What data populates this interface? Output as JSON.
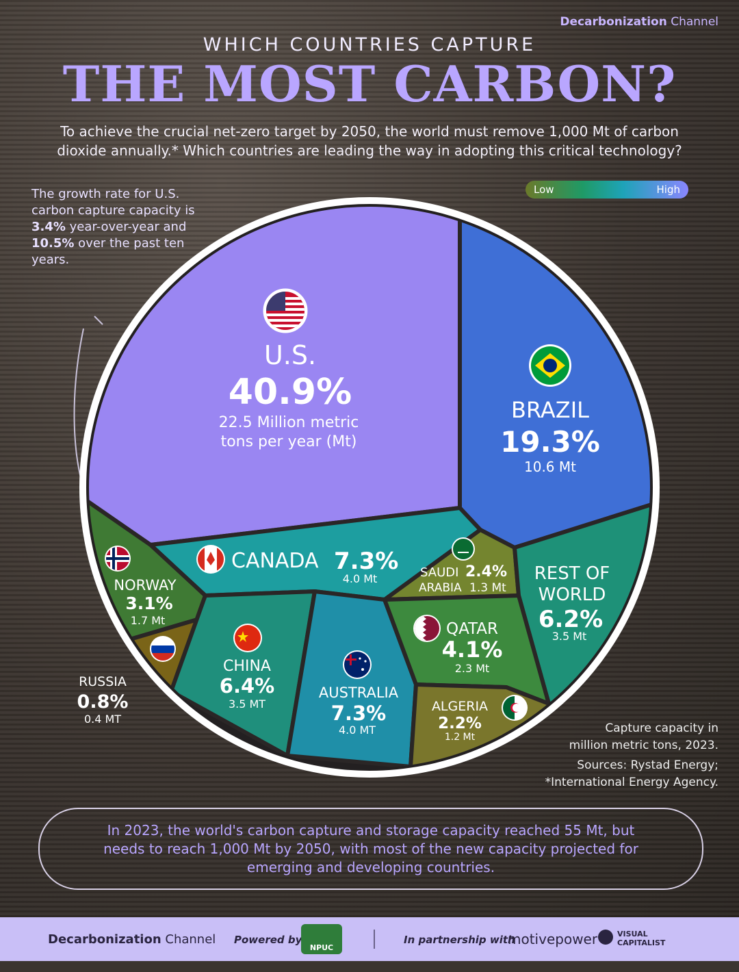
{
  "brand": {
    "bold": "Decarbonization",
    "light": "Channel"
  },
  "kicker": "WHICH COUNTRIES CAPTURE",
  "headline": "THE MOST CARBON?",
  "intro": "To achieve the crucial net-zero target by 2050, the world must remove 1,000 Mt of carbon dioxide annually.* Which countries are leading the way in adopting this critical technology?",
  "note": {
    "text_1": "The growth rate for U.S. carbon capture capacity is ",
    "rate_yoy": "3.4%",
    "text_2": " year-over-year and ",
    "rate_10y": "10.5%",
    "text_3": " over the past ten years."
  },
  "legend": {
    "low": "Low",
    "high": "High",
    "colors": [
      "#6b7a2a",
      "#1f9a66",
      "#1ea3b8",
      "#8a86ff"
    ]
  },
  "chart_data": {
    "type": "voronoi-treemap",
    "title": "THE MOST CARBON?",
    "unit": "Mt",
    "series": [
      {
        "name": "U.S.",
        "share_pct": 40.9,
        "value_text": "22.5 Million metric tons per year (Mt)",
        "value_mt": 22.5,
        "color": "#9a86f2",
        "flag": "us-flag-icon"
      },
      {
        "name": "BRAZIL",
        "share_pct": 19.3,
        "value_text": "10.6 Mt",
        "value_mt": 10.6,
        "color": "#3f6fd6",
        "flag": "brazil-flag-icon"
      },
      {
        "name": "CANADA",
        "share_pct": 7.3,
        "value_text": "4.0 Mt",
        "value_mt": 4.0,
        "color": "#1d9ea0",
        "flag": "canada-flag-icon"
      },
      {
        "name": "AUSTRALIA",
        "share_pct": 7.3,
        "value_text": "4.0 MT",
        "value_mt": 4.0,
        "color": "#1f8fa8",
        "flag": "australia-flag-icon"
      },
      {
        "name": "CHINA",
        "share_pct": 6.4,
        "value_text": "3.5 MT",
        "value_mt": 3.5,
        "color": "#1f8f7c",
        "flag": "china-flag-icon"
      },
      {
        "name": "REST OF WORLD",
        "share_pct": 6.2,
        "value_text": "3.5 Mt",
        "value_mt": 3.5,
        "color": "#1e9178",
        "flag": ""
      },
      {
        "name": "QATAR",
        "share_pct": 4.1,
        "value_text": "2.3 Mt",
        "value_mt": 2.3,
        "color": "#3d8a3e",
        "flag": "qatar-flag-icon"
      },
      {
        "name": "NORWAY",
        "share_pct": 3.1,
        "value_text": "1.7 Mt",
        "value_mt": 1.7,
        "color": "#3f7a34",
        "flag": "norway-flag-icon"
      },
      {
        "name": "SAUDI ARABIA",
        "share_pct": 2.4,
        "value_text": "1.3 Mt",
        "value_mt": 1.3,
        "color": "#74852f",
        "flag": "saudi-flag-icon"
      },
      {
        "name": "ALGERIA",
        "share_pct": 2.2,
        "value_text": "1.2 Mt",
        "value_mt": 1.2,
        "color": "#7a762c",
        "flag": "algeria-flag-icon"
      },
      {
        "name": "RUSSIA",
        "share_pct": 0.8,
        "value_text": "0.4 MT",
        "value_mt": 0.4,
        "color": "#7a6418",
        "flag": "russia-flag-icon"
      }
    ],
    "display": {
      "us_pct": "40.9%",
      "us_value_1": "22.5 Million metric",
      "us_value_2": "tons per year (Mt)",
      "brazil_pct": "19.3%",
      "brazil_value": "10.6 Mt",
      "canada_pct": "7.3%",
      "canada_value": "4.0 Mt",
      "saudi_1": "SAUDI",
      "saudi_2": "ARABIA",
      "saudi_pct": "2.4%",
      "saudi_value": "1.3 Mt",
      "row_1": "REST OF",
      "row_2": "WORLD",
      "row_pct": "6.2%",
      "row_value": "3.5 Mt",
      "norway_pct": "3.1%",
      "norway_value": "1.7 Mt",
      "qatar_pct": "4.1%",
      "qatar_value": "2.3 Mt",
      "china_pct": "6.4%",
      "china_value": "3.5 MT",
      "australia_pct": "7.3%",
      "australia_value": "4.0 MT",
      "algeria_pct": "2.2%",
      "algeria_value": "1.2 Mt",
      "russia_pct": "0.8%",
      "russia_value": "0.4 MT"
    }
  },
  "source": {
    "line1": "Capture capacity in",
    "line2": "million metric tons, 2023.",
    "line3": "Sources: Rystad Energy;",
    "line4": "*International Energy Agency."
  },
  "callout": "In 2023, the world's carbon capture and storage capacity reached 55 Mt, but needs to reach 1,000 Mt by 2050, with most of the new capacity projected for emerging and developing countries.",
  "footer": {
    "brand_bold": "Decarbonization",
    "brand_light": "Channel",
    "powered": "Powered by",
    "npuc": "NPUC",
    "partnership": "In partnership with",
    "motivepower": "motivepower",
    "vc_1": "VISUAL",
    "vc_2": "CAPITALIST"
  }
}
